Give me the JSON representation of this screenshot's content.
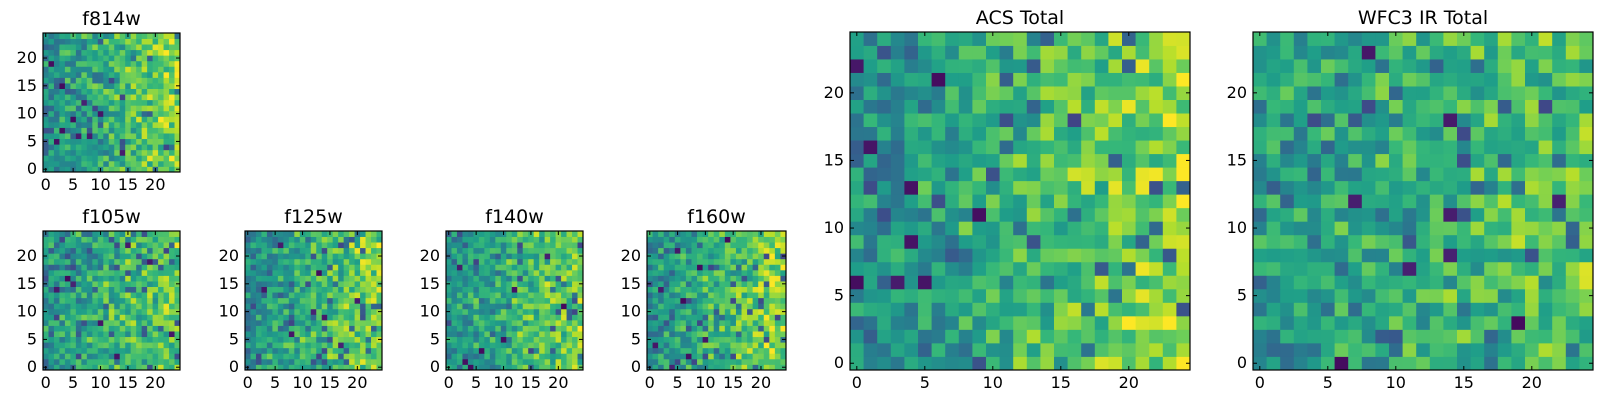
{
  "chart_data": [
    {
      "type": "heatmap",
      "title": "f814w",
      "colormap": "viridis",
      "grid_size": [
        25,
        25
      ],
      "xlim": [
        -0.5,
        24.5
      ],
      "ylim": [
        -0.5,
        24.5
      ],
      "xticks": [
        0,
        5,
        10,
        15,
        20
      ],
      "yticks": [
        0,
        5,
        10,
        15,
        20
      ],
      "xtick_labels": [
        "0",
        "5",
        "10",
        "15",
        "20"
      ],
      "ytick_labels": [
        "0",
        "5",
        "10",
        "15",
        "20"
      ],
      "value_range": [
        0,
        1
      ],
      "seed": 11,
      "trend": 0.35,
      "dark_count": 14,
      "dark_cells": [
        [
          2,
          5
        ],
        [
          3,
          7
        ],
        [
          6,
          6
        ],
        [
          5,
          9
        ],
        [
          8,
          6
        ],
        [
          10,
          10
        ],
        [
          1,
          19
        ],
        [
          14,
          3
        ],
        [
          3,
          15
        ],
        [
          7,
          12
        ]
      ]
    },
    {
      "type": "heatmap",
      "title": "f105w",
      "colormap": "viridis",
      "grid_size": [
        25,
        25
      ],
      "xlim": [
        -0.5,
        24.5
      ],
      "ylim": [
        -0.5,
        24.5
      ],
      "xticks": [
        0,
        5,
        10,
        15,
        20
      ],
      "yticks": [
        0,
        5,
        10,
        15,
        20
      ],
      "xtick_labels": [
        "0",
        "5",
        "10",
        "15",
        "20"
      ],
      "ytick_labels": [
        "0",
        "5",
        "10",
        "15",
        "20"
      ],
      "value_range": [
        0,
        1
      ],
      "seed": 23,
      "trend": 0.25,
      "dark_count": 12,
      "dark_cells": [
        [
          4,
          16
        ],
        [
          5,
          15
        ],
        [
          2,
          14
        ],
        [
          15,
          22
        ],
        [
          23,
          6
        ],
        [
          10,
          8
        ],
        [
          19,
          19
        ],
        [
          13,
          2
        ]
      ]
    },
    {
      "type": "heatmap",
      "title": "f125w",
      "colormap": "viridis",
      "grid_size": [
        25,
        25
      ],
      "xlim": [
        -0.5,
        24.5
      ],
      "ylim": [
        -0.5,
        24.5
      ],
      "xticks": [
        0,
        5,
        10,
        15,
        20
      ],
      "yticks": [
        0,
        5,
        10,
        15,
        20
      ],
      "xtick_labels": [
        "0",
        "5",
        "10",
        "15",
        "20"
      ],
      "ytick_labels": [
        "0",
        "5",
        "10",
        "15",
        "20"
      ],
      "value_range": [
        0,
        1
      ],
      "seed": 37,
      "trend": 0.3,
      "dark_count": 12,
      "dark_cells": [
        [
          13,
          17
        ],
        [
          12,
          10
        ],
        [
          14,
          9
        ],
        [
          3,
          14
        ],
        [
          8,
          6
        ],
        [
          20,
          12
        ],
        [
          6,
          22
        ],
        [
          17,
          4
        ]
      ]
    },
    {
      "type": "heatmap",
      "title": "f140w",
      "colormap": "viridis",
      "grid_size": [
        25,
        25
      ],
      "xlim": [
        -0.5,
        24.5
      ],
      "ylim": [
        -0.5,
        24.5
      ],
      "xticks": [
        0,
        5,
        10,
        15,
        20
      ],
      "yticks": [
        0,
        5,
        10,
        15,
        20
      ],
      "xtick_labels": [
        "0",
        "5",
        "10",
        "15",
        "20"
      ],
      "ytick_labels": [
        "0",
        "5",
        "10",
        "15",
        "20"
      ],
      "value_range": [
        0,
        1
      ],
      "seed": 41,
      "trend": 0.3,
      "dark_count": 14,
      "dark_cells": [
        [
          4,
          0
        ],
        [
          3,
          1
        ],
        [
          6,
          3
        ],
        [
          2,
          18
        ],
        [
          12,
          14
        ],
        [
          10,
          5
        ],
        [
          18,
          20
        ],
        [
          21,
          11
        ]
      ]
    },
    {
      "type": "heatmap",
      "title": "f160w",
      "colormap": "viridis",
      "grid_size": [
        25,
        25
      ],
      "xlim": [
        -0.5,
        24.5
      ],
      "ylim": [
        -0.5,
        24.5
      ],
      "xticks": [
        0,
        5,
        10,
        15,
        20
      ],
      "yticks": [
        0,
        5,
        10,
        15,
        20
      ],
      "xtick_labels": [
        "0",
        "5",
        "10",
        "15",
        "20"
      ],
      "ytick_labels": [
        "0",
        "5",
        "10",
        "15",
        "20"
      ],
      "value_range": [
        0,
        1
      ],
      "seed": 53,
      "trend": 0.35,
      "dark_count": 16,
      "dark_cells": [
        [
          1,
          4
        ],
        [
          7,
          2
        ],
        [
          4,
          0
        ],
        [
          10,
          5
        ],
        [
          2,
          14
        ],
        [
          5,
          21
        ],
        [
          9,
          18
        ],
        [
          14,
          23
        ],
        [
          6,
          12
        ]
      ]
    },
    {
      "type": "heatmap",
      "title": "ACS Total",
      "colormap": "viridis",
      "grid_size": [
        25,
        25
      ],
      "xlim": [
        -0.5,
        24.5
      ],
      "ylim": [
        -0.5,
        24.5
      ],
      "xticks": [
        0,
        5,
        10,
        15,
        20
      ],
      "yticks": [
        0,
        5,
        10,
        15,
        20
      ],
      "xtick_labels": [
        "0",
        "5",
        "10",
        "15",
        "20"
      ],
      "ytick_labels": [
        "0",
        "5",
        "10",
        "15",
        "20"
      ],
      "value_range": [
        0,
        1
      ],
      "seed": 67,
      "trend": 0.4,
      "dark_count": 10,
      "dark_cells": [
        [
          0,
          6
        ],
        [
          3,
          6
        ],
        [
          5,
          6
        ],
        [
          9,
          11
        ],
        [
          4,
          9
        ],
        [
          1,
          16
        ],
        [
          6,
          21
        ],
        [
          0,
          22
        ],
        [
          4,
          13
        ]
      ]
    },
    {
      "type": "heatmap",
      "title": "WFC3 IR Total",
      "colormap": "viridis",
      "grid_size": [
        25,
        25
      ],
      "xlim": [
        -0.5,
        24.5
      ],
      "ylim": [
        -0.5,
        24.5
      ],
      "xticks": [
        0,
        5,
        10,
        15,
        20
      ],
      "yticks": [
        0,
        5,
        10,
        15,
        20
      ],
      "xtick_labels": [
        "0",
        "5",
        "10",
        "15",
        "20"
      ],
      "ytick_labels": [
        "0",
        "5",
        "10",
        "15",
        "20"
      ],
      "value_range": [
        0,
        1
      ],
      "seed": 79,
      "trend": 0.2,
      "dark_count": 10,
      "dark_cells": [
        [
          8,
          23
        ],
        [
          14,
          18
        ],
        [
          7,
          12
        ],
        [
          14,
          11
        ],
        [
          22,
          12
        ],
        [
          14,
          8
        ],
        [
          11,
          7
        ],
        [
          6,
          0
        ],
        [
          19,
          3
        ]
      ]
    }
  ]
}
